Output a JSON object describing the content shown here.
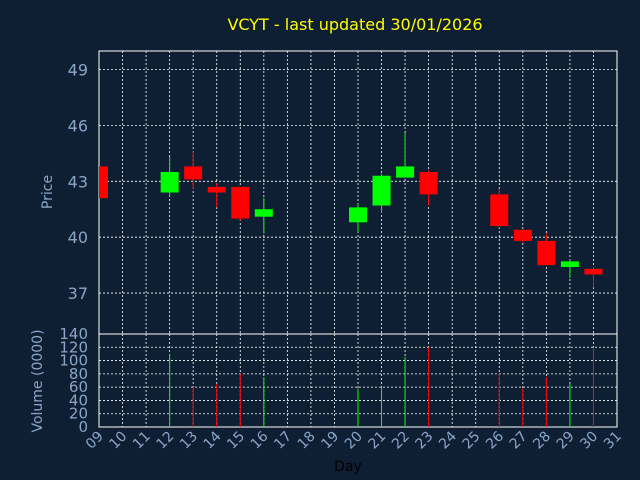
{
  "chart_data": {
    "type": "candlestick",
    "title": "VCYT - last updated 30/01/2026",
    "xlabel": "Day",
    "colors": {
      "background": "#0f1f33",
      "up": "#00ff00",
      "down": "#ff0000",
      "grid": "#ffffff",
      "title": "#ffff00",
      "axis_text": "#8aa6c8"
    },
    "x_ticks": [
      "09",
      "10",
      "11",
      "12",
      "13",
      "14",
      "15",
      "16",
      "17",
      "18",
      "19",
      "20",
      "21",
      "22",
      "23",
      "24",
      "25",
      "26",
      "27",
      "28",
      "29",
      "30",
      "31"
    ],
    "price_panel": {
      "ylabel": "Price",
      "ylim": [
        34.8,
        50
      ],
      "y_ticks": [
        "37",
        "40",
        "43",
        "46",
        "49"
      ],
      "y_tick_values": [
        37,
        40,
        43,
        46,
        49
      ],
      "grid": true
    },
    "volume_panel": {
      "ylabel": "Volume (0000)",
      "ylim": [
        0,
        140
      ],
      "y_ticks": [
        "0",
        "20",
        "40",
        "60",
        "80",
        "100",
        "120",
        "140"
      ],
      "y_tick_values": [
        0,
        20,
        40,
        60,
        80,
        100,
        120,
        140
      ],
      "grid": true
    },
    "candles": [
      {
        "day": "09",
        "open": 43.8,
        "high": 43.8,
        "low": 42.1,
        "close": 42.1,
        "volume": 0
      },
      {
        "day": "12",
        "open": 42.4,
        "high": 44.3,
        "low": 42.2,
        "close": 43.5,
        "volume": 110
      },
      {
        "day": "13",
        "open": 43.8,
        "high": 44.6,
        "low": 42.6,
        "close": 43.1,
        "volume": 60
      },
      {
        "day": "14",
        "open": 42.7,
        "high": 42.9,
        "low": 41.6,
        "close": 42.4,
        "volume": 65
      },
      {
        "day": "15",
        "open": 42.7,
        "high": 42.7,
        "low": 40.9,
        "close": 41.0,
        "volume": 80
      },
      {
        "day": "16",
        "open": 41.1,
        "high": 42.1,
        "low": 40.2,
        "close": 41.5,
        "volume": 75
      },
      {
        "day": "20",
        "open": 40.8,
        "high": 41.8,
        "low": 40.3,
        "close": 41.6,
        "volume": 58
      },
      {
        "day": "21",
        "open": 41.7,
        "high": 43.4,
        "low": 41.3,
        "close": 43.3,
        "volume": 60
      },
      {
        "day": "22",
        "open": 43.2,
        "high": 45.6,
        "low": 43.2,
        "close": 43.8,
        "volume": 105
      },
      {
        "day": "23",
        "open": 43.5,
        "high": 43.6,
        "low": 41.7,
        "close": 42.3,
        "volume": 120
      },
      {
        "day": "26",
        "open": 42.3,
        "high": 42.6,
        "low": 40.5,
        "close": 40.6,
        "volume": 80
      },
      {
        "day": "27",
        "open": 40.4,
        "high": 40.4,
        "low": 39.7,
        "close": 39.8,
        "volume": 58
      },
      {
        "day": "28",
        "open": 39.8,
        "high": 40.2,
        "low": 38.5,
        "close": 38.5,
        "volume": 75
      },
      {
        "day": "29",
        "open": 38.4,
        "high": 38.8,
        "low": 37.8,
        "close": 38.7,
        "volume": 65
      },
      {
        "day": "30",
        "open": 38.3,
        "high": 38.4,
        "low": 37.3,
        "close": 38.0,
        "volume": 120
      }
    ]
  }
}
